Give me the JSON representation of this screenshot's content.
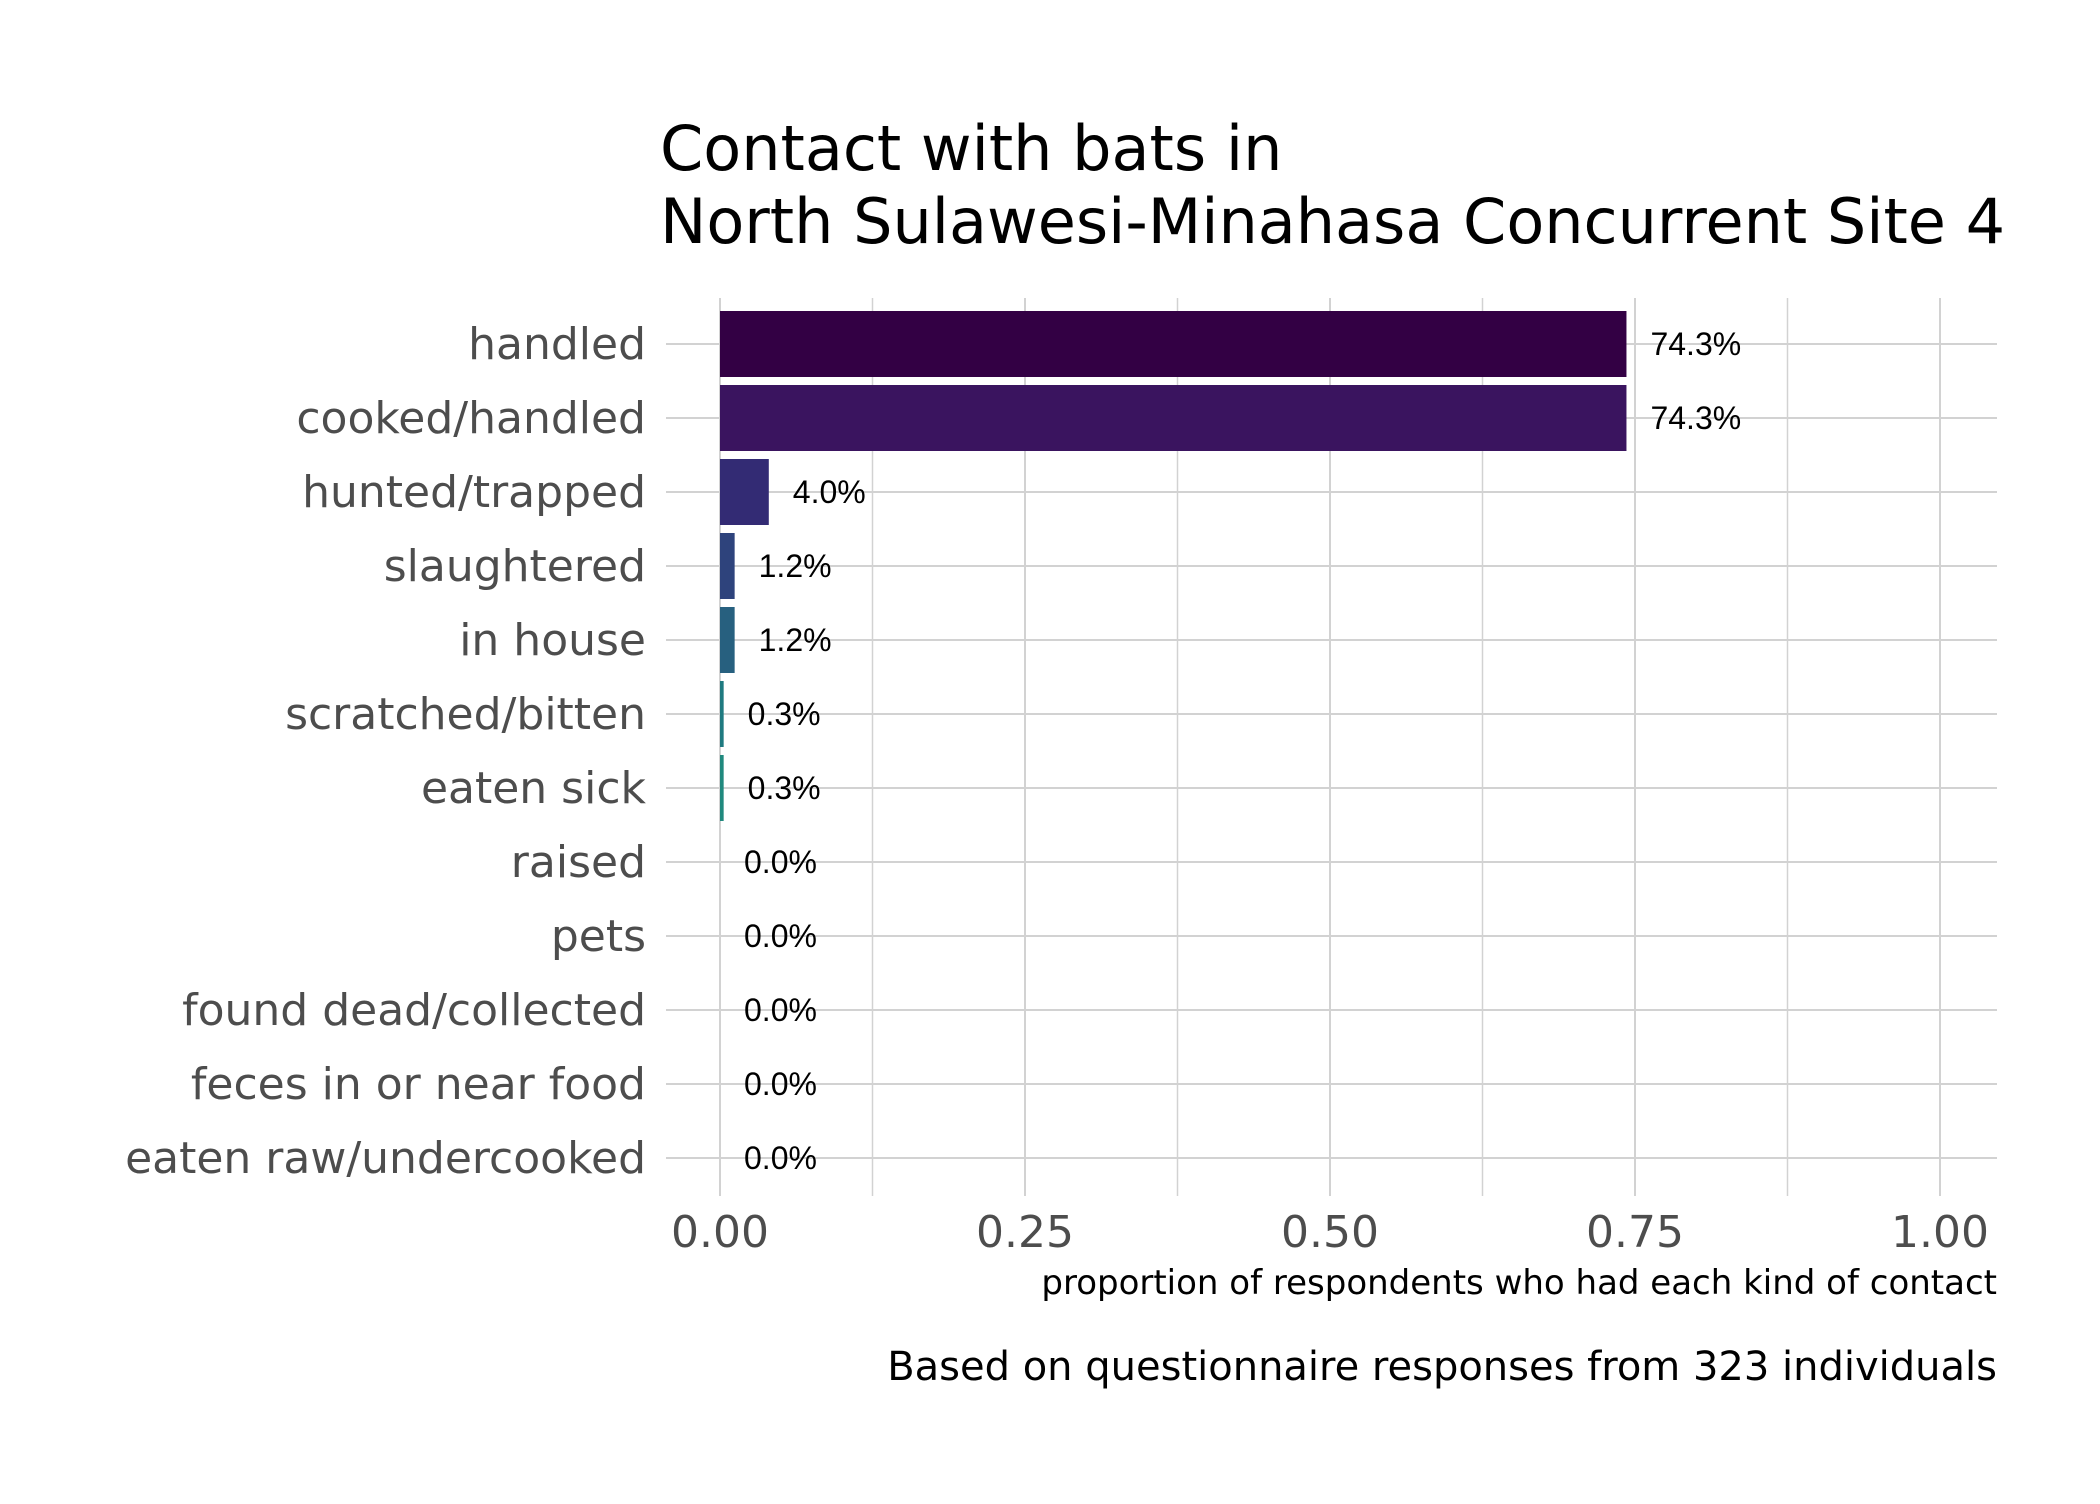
{
  "chart_data": {
    "type": "bar",
    "orientation": "horizontal",
    "title_lines": [
      "Contact with bats in",
      "North Sulawesi-Minahasa Concurrent Site 4"
    ],
    "xlabel": "proportion of respondents who had each kind of contact",
    "ylabel": "",
    "caption": "Based on questionnaire responses from 323 individuals",
    "xlim": [
      0,
      1
    ],
    "xticks": [
      0,
      0.25,
      0.5,
      0.75,
      1.0
    ],
    "xtick_labels": [
      "0.00",
      "0.25",
      "0.50",
      "0.75",
      "1.00"
    ],
    "grid": true,
    "legend": "none",
    "categories": [
      "handled",
      "cooked/handled",
      "hunted/trapped",
      "slaughtered",
      "in house",
      "scratched/bitten",
      "eaten sick",
      "raised",
      "pets",
      "found dead/collected",
      "feces in or near food",
      "eaten raw/undercooked"
    ],
    "values": [
      0.743,
      0.743,
      0.04,
      0.012,
      0.012,
      0.003,
      0.003,
      0,
      0,
      0,
      0,
      0
    ],
    "value_labels": [
      "74.3%",
      "74.3%",
      "4.0%",
      "1.2%",
      "1.2%",
      "0.3%",
      "0.3%",
      "0.0%",
      "0.0%",
      "0.0%",
      "0.0%",
      "0.0%"
    ],
    "colors": [
      "#330044",
      "#3a145f",
      "#332b74",
      "#2e437c",
      "#27607f",
      "#1f7a80",
      "#20897e",
      "#2a9a77",
      "#3fb16b",
      "#68c75a",
      "#a0d742",
      "#dde318"
    ]
  }
}
